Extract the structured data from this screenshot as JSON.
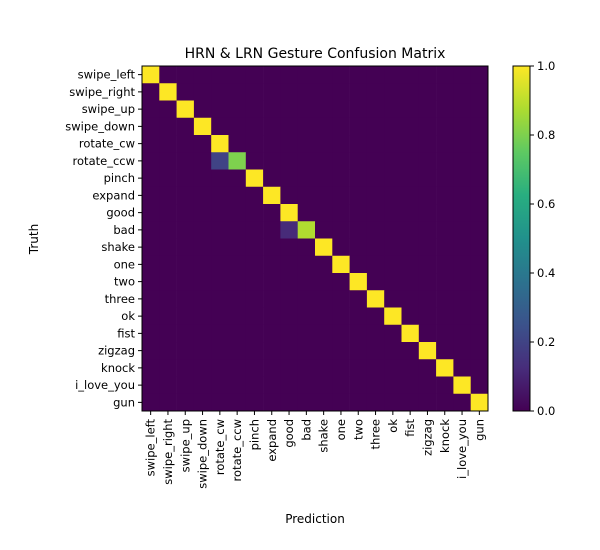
{
  "chart_data": {
    "type": "heatmap",
    "title": "HRN & LRN Gesture Confusion Matrix",
    "xlabel": "Prediction",
    "ylabel": "Truth",
    "labels": [
      "swipe_left",
      "swipe_right",
      "swipe_up",
      "swipe_down",
      "rotate_cw",
      "rotate_ccw",
      "pinch",
      "expand",
      "good",
      "bad",
      "shake",
      "one",
      "two",
      "three",
      "ok",
      "fist",
      "zigzag",
      "knock",
      "i_love_you",
      "gun"
    ],
    "values": [
      [
        1,
        0,
        0,
        0,
        0,
        0,
        0,
        0,
        0,
        0,
        0,
        0,
        0,
        0,
        0,
        0,
        0,
        0,
        0,
        0
      ],
      [
        0,
        1,
        0,
        0,
        0,
        0,
        0,
        0,
        0,
        0,
        0,
        0,
        0,
        0,
        0,
        0,
        0,
        0,
        0,
        0
      ],
      [
        0,
        0,
        1,
        0,
        0,
        0,
        0,
        0,
        0,
        0,
        0,
        0,
        0,
        0,
        0,
        0,
        0,
        0,
        0,
        0
      ],
      [
        0,
        0,
        0,
        1,
        0,
        0,
        0,
        0,
        0,
        0,
        0,
        0,
        0,
        0,
        0,
        0,
        0,
        0,
        0,
        0
      ],
      [
        0,
        0,
        0,
        0,
        1,
        0,
        0,
        0,
        0,
        0,
        0,
        0,
        0,
        0,
        0,
        0,
        0,
        0,
        0,
        0
      ],
      [
        0,
        0,
        0,
        0,
        0.2,
        0.8,
        0,
        0,
        0,
        0,
        0,
        0,
        0,
        0,
        0,
        0,
        0,
        0,
        0,
        0
      ],
      [
        0,
        0,
        0,
        0,
        0,
        0,
        1,
        0,
        0,
        0,
        0,
        0,
        0,
        0,
        0,
        0,
        0,
        0,
        0,
        0
      ],
      [
        0,
        0,
        0,
        0,
        0,
        0,
        0,
        1,
        0,
        0,
        0,
        0,
        0,
        0,
        0,
        0,
        0,
        0,
        0,
        0
      ],
      [
        0,
        0,
        0,
        0,
        0,
        0,
        0,
        0,
        1,
        0,
        0,
        0,
        0,
        0,
        0,
        0,
        0,
        0,
        0,
        0
      ],
      [
        0,
        0,
        0,
        0,
        0,
        0,
        0,
        0,
        0.12,
        0.88,
        0,
        0,
        0,
        0,
        0,
        0,
        0,
        0,
        0,
        0
      ],
      [
        0,
        0,
        0,
        0,
        0,
        0,
        0,
        0,
        0,
        0,
        1,
        0,
        0,
        0,
        0,
        0,
        0,
        0,
        0,
        0
      ],
      [
        0,
        0,
        0,
        0,
        0,
        0,
        0,
        0,
        0,
        0,
        0,
        1,
        0,
        0,
        0,
        0,
        0,
        0,
        0,
        0
      ],
      [
        0,
        0,
        0,
        0,
        0,
        0,
        0,
        0,
        0,
        0,
        0,
        0,
        1,
        0,
        0,
        0,
        0,
        0,
        0,
        0
      ],
      [
        0,
        0,
        0,
        0,
        0,
        0,
        0,
        0,
        0,
        0,
        0,
        0,
        0,
        1,
        0,
        0,
        0,
        0,
        0,
        0
      ],
      [
        0,
        0,
        0,
        0,
        0,
        0,
        0,
        0,
        0,
        0,
        0,
        0,
        0,
        0,
        1,
        0,
        0,
        0,
        0,
        0
      ],
      [
        0,
        0,
        0,
        0,
        0,
        0,
        0,
        0,
        0,
        0,
        0,
        0,
        0,
        0,
        0,
        1,
        0,
        0,
        0,
        0
      ],
      [
        0,
        0,
        0,
        0,
        0,
        0,
        0,
        0,
        0,
        0,
        0,
        0,
        0,
        0,
        0,
        0,
        1,
        0,
        0,
        0
      ],
      [
        0,
        0,
        0,
        0,
        0,
        0,
        0,
        0,
        0,
        0,
        0,
        0,
        0,
        0,
        0,
        0,
        0,
        1,
        0,
        0
      ],
      [
        0,
        0,
        0,
        0,
        0,
        0,
        0,
        0,
        0,
        0,
        0,
        0,
        0,
        0,
        0,
        0,
        0,
        0,
        1,
        0
      ],
      [
        0,
        0,
        0,
        0,
        0,
        0,
        0,
        0,
        0,
        0,
        0,
        0,
        0,
        0,
        0,
        0,
        0,
        0,
        0,
        1
      ]
    ],
    "colorbar": {
      "range": [
        0,
        1
      ],
      "ticks": [
        "0.0",
        "0.2",
        "0.4",
        "0.6",
        "0.8",
        "1.0"
      ],
      "colormap": "viridis"
    },
    "legend": "none",
    "grid": false
  }
}
